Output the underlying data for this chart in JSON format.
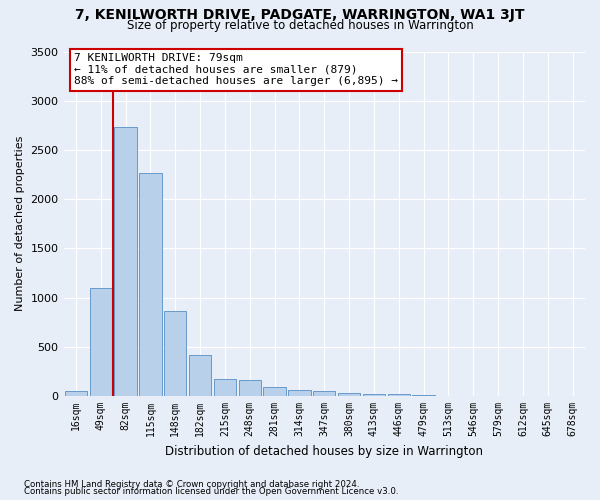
{
  "title": "7, KENILWORTH DRIVE, PADGATE, WARRINGTON, WA1 3JT",
  "subtitle": "Size of property relative to detached houses in Warrington",
  "xlabel": "Distribution of detached houses by size in Warrington",
  "ylabel": "Number of detached properties",
  "bar_labels": [
    "16sqm",
    "49sqm",
    "82sqm",
    "115sqm",
    "148sqm",
    "182sqm",
    "215sqm",
    "248sqm",
    "281sqm",
    "314sqm",
    "347sqm",
    "380sqm",
    "413sqm",
    "446sqm",
    "479sqm",
    "513sqm",
    "546sqm",
    "579sqm",
    "612sqm",
    "645sqm",
    "678sqm"
  ],
  "bar_values": [
    50,
    1100,
    2730,
    2270,
    860,
    420,
    175,
    165,
    95,
    60,
    50,
    35,
    25,
    20,
    10,
    5,
    5,
    5,
    5,
    5,
    5
  ],
  "bar_color": "#b8d0ea",
  "bar_edgecolor": "#6699cc",
  "annotation_title": "7 KENILWORTH DRIVE: 79sqm",
  "annotation_line1": "← 11% of detached houses are smaller (879)",
  "annotation_line2": "88% of semi-detached houses are larger (6,895) →",
  "annotation_box_color": "#ffffff",
  "annotation_border_color": "#cc0000",
  "vline_color": "#cc0000",
  "background_color": "#e8eef8",
  "grid_color": "#ffffff",
  "ylim": [
    0,
    3500
  ],
  "footnote1": "Contains HM Land Registry data © Crown copyright and database right 2024.",
  "footnote2": "Contains public sector information licensed under the Open Government Licence v3.0."
}
